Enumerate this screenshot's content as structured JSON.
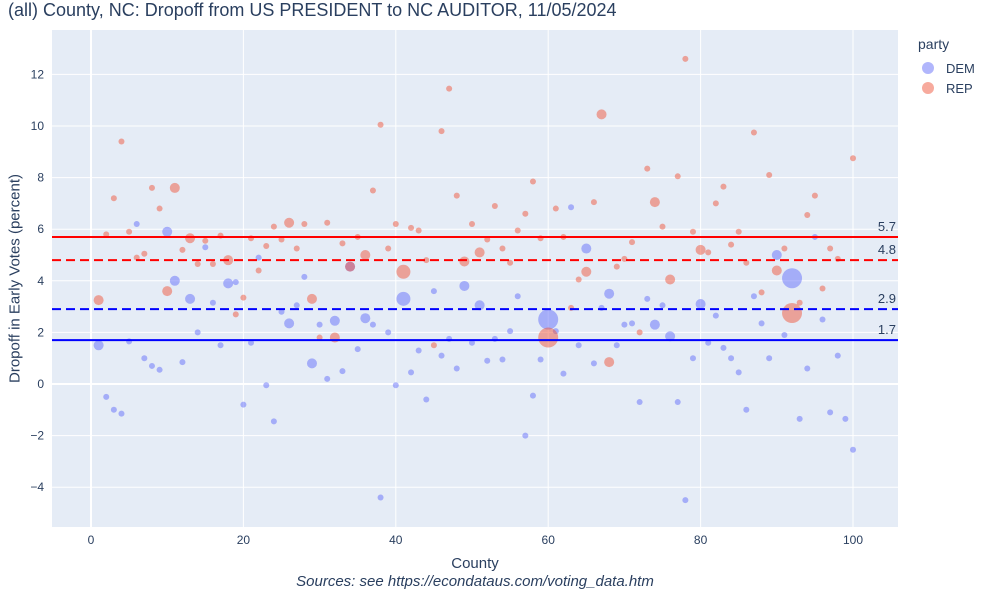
{
  "chart_data": {
    "type": "scatter",
    "title": "(all) County, NC: Dropoff from US PRESIDENT to NC AUDITOR, 11/05/2024",
    "xlabel": "County",
    "ylabel": "Dropoff in Early Votes (percent)",
    "source": "Sources: see https://econdataus.com/voting_data.htm",
    "xlim": [
      -5.5,
      106
    ],
    "ylim": [
      -5.6,
      13.7
    ],
    "xticks": [
      0,
      20,
      40,
      60,
      80,
      100
    ],
    "yticks": [
      -4,
      -2,
      0,
      2,
      4,
      6,
      8,
      10,
      12
    ],
    "grid": true,
    "legend": {
      "title": "party",
      "placement": "top-right-outside",
      "entries": [
        "DEM",
        "REP"
      ]
    },
    "colors": {
      "DEM": "#636efa",
      "REP": "#ef553b",
      "bg": "#e5ecf6"
    },
    "point_format": "[county, dropoff, relative_size]",
    "series": [
      {
        "name": "DEM",
        "points": [
          [
            1,
            1.5,
            2
          ],
          [
            2,
            -0.5,
            1
          ],
          [
            3,
            -1.0,
            1
          ],
          [
            4,
            -1.15,
            1
          ],
          [
            5,
            1.65,
            1
          ],
          [
            6,
            6.2,
            1
          ],
          [
            7,
            1.0,
            1
          ],
          [
            8,
            0.7,
            1
          ],
          [
            9,
            0.55,
            1
          ],
          [
            10,
            5.9,
            2
          ],
          [
            11,
            4.0,
            2
          ],
          [
            12,
            0.85,
            1
          ],
          [
            13,
            3.3,
            2
          ],
          [
            14,
            2.0,
            1
          ],
          [
            15,
            5.3,
            1
          ],
          [
            16,
            3.15,
            1
          ],
          [
            17,
            1.5,
            1
          ],
          [
            18,
            3.9,
            2
          ],
          [
            19,
            3.95,
            1
          ],
          [
            20,
            -0.8,
            1
          ],
          [
            21,
            1.6,
            1
          ],
          [
            22,
            4.9,
            1
          ],
          [
            23,
            -0.05,
            1
          ],
          [
            24,
            -1.45,
            1
          ],
          [
            25,
            2.8,
            1
          ],
          [
            26,
            2.35,
            2
          ],
          [
            27,
            3.05,
            1
          ],
          [
            28,
            4.15,
            1
          ],
          [
            29,
            0.8,
            2
          ],
          [
            30,
            2.3,
            1
          ],
          [
            31,
            0.2,
            1
          ],
          [
            32,
            2.45,
            2
          ],
          [
            33,
            0.5,
            1
          ],
          [
            34,
            4.55,
            2
          ],
          [
            35,
            1.35,
            1
          ],
          [
            36,
            2.55,
            2
          ],
          [
            37,
            2.3,
            1
          ],
          [
            38,
            -4.4,
            1
          ],
          [
            39,
            2.0,
            1
          ],
          [
            40,
            -0.05,
            1
          ],
          [
            41,
            3.3,
            3
          ],
          [
            42,
            0.45,
            1
          ],
          [
            43,
            1.3,
            1
          ],
          [
            44,
            -0.6,
            1
          ],
          [
            45,
            3.6,
            1
          ],
          [
            46,
            1.1,
            1
          ],
          [
            47,
            1.75,
            1
          ],
          [
            48,
            0.6,
            1
          ],
          [
            49,
            3.8,
            2
          ],
          [
            50,
            1.6,
            1
          ],
          [
            51,
            3.05,
            2
          ],
          [
            52,
            0.9,
            1
          ],
          [
            53,
            1.75,
            1
          ],
          [
            54,
            0.95,
            1
          ],
          [
            55,
            2.05,
            1
          ],
          [
            56,
            3.4,
            1
          ],
          [
            57,
            -2.0,
            1
          ],
          [
            58,
            -0.45,
            1
          ],
          [
            59,
            0.95,
            1
          ],
          [
            60,
            2.5,
            4
          ],
          [
            61,
            2.05,
            1
          ],
          [
            62,
            0.4,
            1
          ],
          [
            63,
            6.85,
            1
          ],
          [
            64,
            1.5,
            1
          ],
          [
            65,
            5.25,
            2
          ],
          [
            66,
            0.8,
            1
          ],
          [
            67,
            2.95,
            1
          ],
          [
            68,
            3.5,
            2
          ],
          [
            69,
            1.5,
            1
          ],
          [
            70,
            2.3,
            1
          ],
          [
            71,
            2.35,
            1
          ],
          [
            72,
            -0.7,
            1
          ],
          [
            73,
            3.3,
            1
          ],
          [
            74,
            2.3,
            2
          ],
          [
            75,
            3.05,
            1
          ],
          [
            76,
            1.85,
            2
          ],
          [
            77,
            -0.7,
            1
          ],
          [
            78,
            -4.5,
            1
          ],
          [
            79,
            1.0,
            1
          ],
          [
            80,
            3.1,
            2
          ],
          [
            81,
            1.6,
            1
          ],
          [
            82,
            2.65,
            1
          ],
          [
            83,
            1.4,
            1
          ],
          [
            84,
            1.0,
            1
          ],
          [
            85,
            0.45,
            1
          ],
          [
            86,
            -1.0,
            1
          ],
          [
            87,
            3.4,
            1
          ],
          [
            88,
            2.35,
            1
          ],
          [
            89,
            1.0,
            1
          ],
          [
            90,
            5.0,
            2
          ],
          [
            91,
            1.9,
            1
          ],
          [
            92,
            4.1,
            4
          ],
          [
            93,
            -1.35,
            1
          ],
          [
            94,
            0.6,
            1
          ],
          [
            95,
            5.7,
            1
          ],
          [
            96,
            2.5,
            1
          ],
          [
            97,
            -1.1,
            1
          ],
          [
            98,
            1.1,
            1
          ],
          [
            99,
            -1.35,
            1
          ],
          [
            100,
            -2.55,
            1
          ]
        ]
      },
      {
        "name": "REP",
        "points": [
          [
            1,
            3.25,
            2
          ],
          [
            2,
            5.8,
            1
          ],
          [
            3,
            7.2,
            1
          ],
          [
            4,
            9.4,
            1
          ],
          [
            5,
            5.9,
            1
          ],
          [
            6,
            4.9,
            1
          ],
          [
            7,
            5.05,
            1
          ],
          [
            8,
            7.6,
            1
          ],
          [
            9,
            6.8,
            1
          ],
          [
            10,
            3.6,
            2
          ],
          [
            11,
            7.6,
            2
          ],
          [
            12,
            5.2,
            1
          ],
          [
            13,
            5.65,
            2
          ],
          [
            14,
            4.65,
            1
          ],
          [
            15,
            5.55,
            1
          ],
          [
            16,
            4.65,
            1
          ],
          [
            17,
            5.75,
            1
          ],
          [
            18,
            4.8,
            2
          ],
          [
            19,
            2.7,
            1
          ],
          [
            20,
            3.35,
            1
          ],
          [
            21,
            5.65,
            1
          ],
          [
            22,
            4.4,
            1
          ],
          [
            23,
            5.35,
            1
          ],
          [
            24,
            6.1,
            1
          ],
          [
            25,
            5.6,
            1
          ],
          [
            26,
            6.25,
            2
          ],
          [
            27,
            5.25,
            1
          ],
          [
            28,
            6.2,
            1
          ],
          [
            29,
            3.3,
            2
          ],
          [
            30,
            1.8,
            1
          ],
          [
            31,
            6.25,
            1
          ],
          [
            32,
            1.8,
            2
          ],
          [
            33,
            5.45,
            1
          ],
          [
            34,
            4.55,
            2
          ],
          [
            35,
            5.7,
            1
          ],
          [
            36,
            5.0,
            2
          ],
          [
            37,
            7.5,
            1
          ],
          [
            38,
            10.05,
            1
          ],
          [
            39,
            5.25,
            1
          ],
          [
            40,
            6.2,
            1
          ],
          [
            41,
            4.35,
            3
          ],
          [
            42,
            6.05,
            1
          ],
          [
            43,
            5.95,
            1
          ],
          [
            44,
            4.8,
            1
          ],
          [
            45,
            1.5,
            1
          ],
          [
            46,
            9.8,
            1
          ],
          [
            47,
            11.45,
            1
          ],
          [
            48,
            7.3,
            1
          ],
          [
            49,
            4.75,
            2
          ],
          [
            50,
            6.2,
            1
          ],
          [
            51,
            5.1,
            2
          ],
          [
            52,
            5.6,
            1
          ],
          [
            53,
            6.9,
            1
          ],
          [
            54,
            5.25,
            1
          ],
          [
            55,
            4.7,
            1
          ],
          [
            56,
            5.95,
            1
          ],
          [
            57,
            6.6,
            1
          ],
          [
            58,
            7.85,
            1
          ],
          [
            59,
            5.65,
            1
          ],
          [
            60,
            1.8,
            4
          ],
          [
            61,
            6.8,
            1
          ],
          [
            62,
            5.7,
            1
          ],
          [
            63,
            2.95,
            1
          ],
          [
            64,
            4.05,
            1
          ],
          [
            65,
            4.35,
            2
          ],
          [
            66,
            7.05,
            1
          ],
          [
            67,
            10.45,
            2
          ],
          [
            68,
            0.85,
            2
          ],
          [
            69,
            4.55,
            1
          ],
          [
            70,
            4.85,
            1
          ],
          [
            71,
            5.5,
            1
          ],
          [
            72,
            2.0,
            1
          ],
          [
            73,
            8.35,
            1
          ],
          [
            74,
            7.05,
            2
          ],
          [
            75,
            6.1,
            1
          ],
          [
            76,
            4.05,
            2
          ],
          [
            77,
            8.05,
            1
          ],
          [
            78,
            12.6,
            1
          ],
          [
            79,
            5.9,
            1
          ],
          [
            80,
            5.2,
            2
          ],
          [
            81,
            5.1,
            1
          ],
          [
            82,
            7.0,
            1
          ],
          [
            83,
            7.65,
            1
          ],
          [
            84,
            5.4,
            1
          ],
          [
            85,
            5.9,
            1
          ],
          [
            86,
            4.7,
            1
          ],
          [
            87,
            9.75,
            1
          ],
          [
            88,
            3.55,
            1
          ],
          [
            89,
            8.1,
            1
          ],
          [
            90,
            4.4,
            2
          ],
          [
            91,
            5.25,
            1
          ],
          [
            92,
            2.75,
            4
          ],
          [
            93,
            3.15,
            1
          ],
          [
            94,
            6.55,
            1
          ],
          [
            95,
            7.3,
            1
          ],
          [
            96,
            3.7,
            1
          ],
          [
            97,
            5.25,
            1
          ],
          [
            98,
            4.85,
            1
          ],
          [
            100,
            8.75,
            1
          ]
        ]
      }
    ],
    "reference_lines": [
      {
        "label": "5.7",
        "value": 5.7,
        "color": "#ff0000",
        "style": "solid"
      },
      {
        "label": "4.8",
        "value": 4.8,
        "color": "#ff0000",
        "style": "dash"
      },
      {
        "label": "2.9",
        "value": 2.9,
        "color": "#0000ff",
        "style": "dash"
      },
      {
        "label": "1.7",
        "value": 1.7,
        "color": "#0000ff",
        "style": "solid"
      }
    ]
  }
}
